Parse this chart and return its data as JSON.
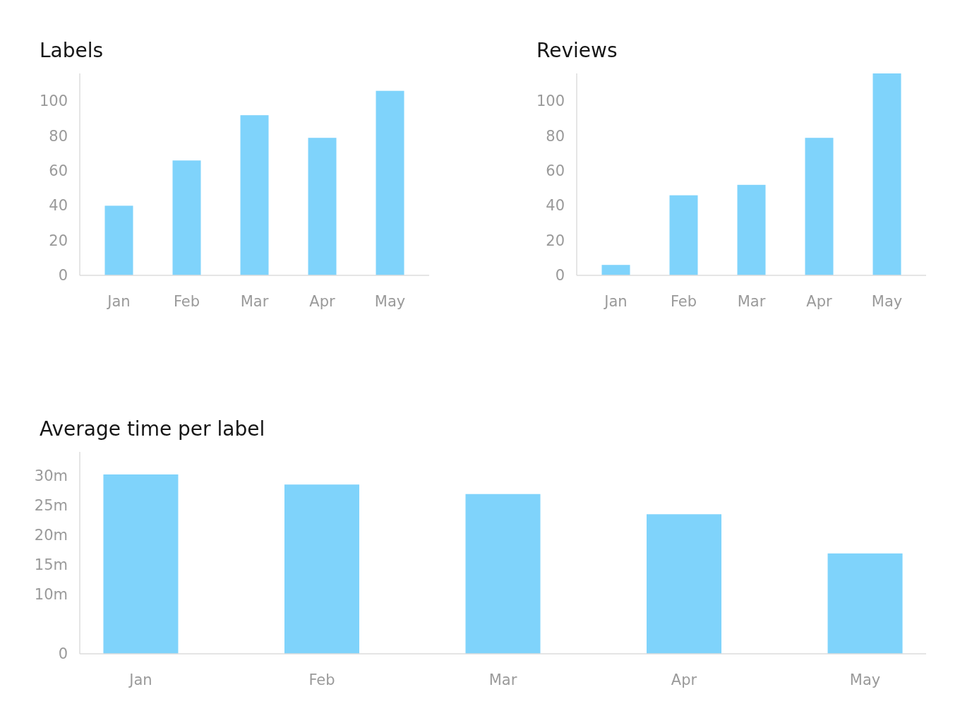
{
  "chart_data": [
    {
      "type": "bar",
      "title": "Labels",
      "categories": [
        "Jan",
        "Feb",
        "Mar",
        "Apr",
        "May"
      ],
      "values": [
        40,
        66,
        92,
        79,
        106
      ],
      "color": "#7fd3fb",
      "ylim": [
        0,
        116
      ],
      "yticks": [
        0,
        20,
        40,
        60,
        80,
        100
      ]
    },
    {
      "type": "bar",
      "title": "Reviews",
      "categories": [
        "Jan",
        "Feb",
        "Mar",
        "Apr",
        "May"
      ],
      "values": [
        6,
        46,
        52,
        79,
        116
      ],
      "color": "#7fd3fb",
      "ylim": [
        0,
        116
      ],
      "yticks": [
        0,
        20,
        40,
        60,
        80,
        100
      ]
    },
    {
      "type": "bar",
      "title": "Average time per label",
      "categories": [
        "Jan",
        "Feb",
        "Mar",
        "Apr",
        "May"
      ],
      "values": [
        30.2,
        28.5,
        26.9,
        23.5,
        16.9
      ],
      "color": "#7fd3fb",
      "ylim": [
        0,
        34
      ],
      "yticks": [
        0,
        {
          "value": 10,
          "label": "10m"
        },
        {
          "value": 15,
          "label": "15m"
        },
        {
          "value": 20,
          "label": "20m"
        },
        {
          "value": 25,
          "label": "25m"
        },
        {
          "value": 30,
          "label": "30m"
        }
      ]
    }
  ]
}
